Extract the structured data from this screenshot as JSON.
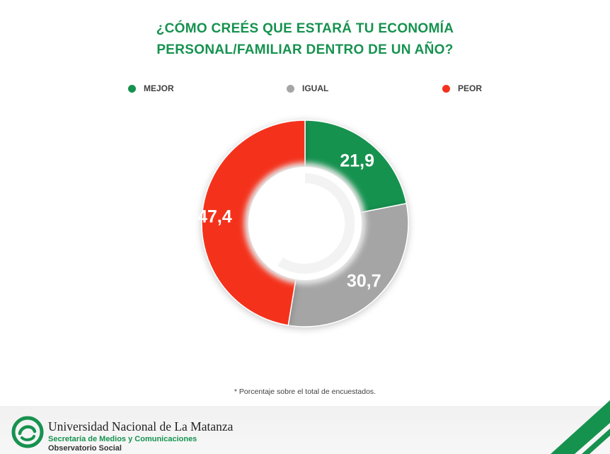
{
  "title": {
    "line1": "¿CÓMO CREÉS QUE ESTARÁ TU ECONOMÍA",
    "line2": "PERSONAL/FAMILIAR DENTRO DE UN AÑO?"
  },
  "chart_data": {
    "type": "donut",
    "title": "¿CÓMO CREÉS QUE ESTARÁ TU ECONOMÍA PERSONAL/FAMILIAR DENTRO DE UN AÑO?",
    "categories": [
      "MEJOR",
      "IGUAL",
      "PEOR"
    ],
    "values": [
      21.9,
      30.7,
      47.4
    ],
    "labels": [
      "21,9",
      "30,7",
      "47,4"
    ],
    "colors": [
      "#16924f",
      "#a5a5a5",
      "#f4311f"
    ],
    "legend_position": "top"
  },
  "legend": [
    {
      "label": "MEJOR",
      "color": "#16924f"
    },
    {
      "label": "IGUAL",
      "color": "#a5a5a5"
    },
    {
      "label": "PEOR",
      "color": "#f4311f"
    }
  ],
  "footnote": "* Porcentaje sobre el total de encuestados.",
  "footer": {
    "university": "Universidad Nacional de La Matanza",
    "secretaria": "Secretaría de Medios y Comunicaciones",
    "observatorio": "Observatorio Social",
    "logo_icon": "unlam-logo-icon",
    "accent_color": "#16924f"
  }
}
